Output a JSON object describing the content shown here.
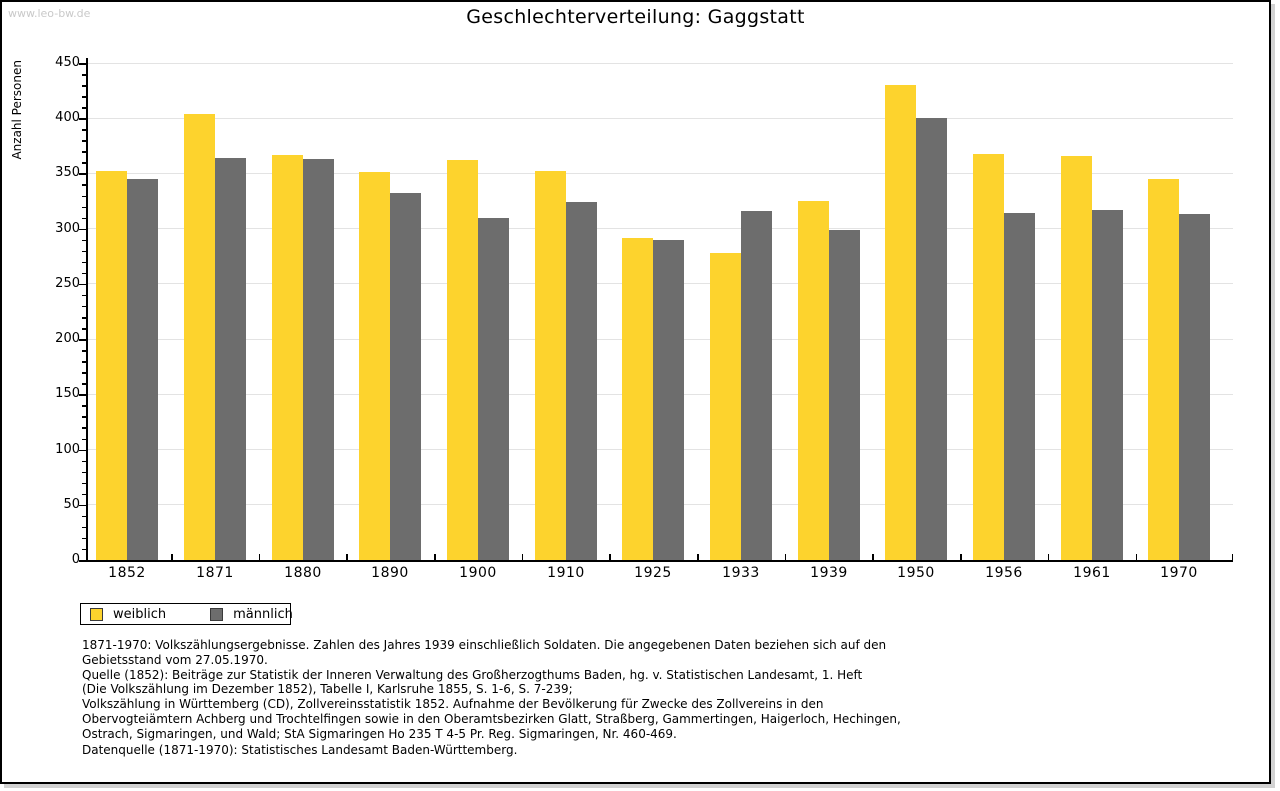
{
  "watermark": "www.leo-bw.de",
  "title": "Geschlechterverteilung: Gaggstatt",
  "chart_data": {
    "type": "bar",
    "title": "Geschlechterverteilung: Gaggstatt",
    "xlabel": "",
    "ylabel": "Anzahl Personen",
    "categories": [
      "1852",
      "1871",
      "1880",
      "1890",
      "1900",
      "1910",
      "1925",
      "1933",
      "1939",
      "1950",
      "1956",
      "1961",
      "1970"
    ],
    "series": [
      {
        "name": "weiblich",
        "color": "#fdd32d",
        "values": [
          352,
          404,
          367,
          351,
          362,
          352,
          292,
          278,
          325,
          430,
          368,
          366,
          345
        ]
      },
      {
        "name": "männlich",
        "color": "#6d6d6d",
        "values": [
          345,
          364,
          363,
          332,
          310,
          324,
          290,
          316,
          299,
          400,
          314,
          317,
          313
        ]
      }
    ],
    "ylim": [
      0,
      450
    ],
    "ytick_step": 50,
    "minor_tick_step": 10,
    "grid": "horizontal",
    "legend_position": "bottom-left"
  },
  "legend": {
    "items": [
      {
        "label": "weiblich",
        "color": "#fdd32d"
      },
      {
        "label": "männlich",
        "color": "#6d6d6d"
      }
    ]
  },
  "footnotes": {
    "lines": [
      "1871-1970: Volkszählungsergebnisse. Zahlen des Jahres 1939 einschließlich Soldaten. Die angegebenen Daten beziehen sich auf den",
      "Gebietsstand vom 27.05.1970.",
      "Quelle (1852): Beiträge zur Statistik der Inneren Verwaltung des Großherzogthums Baden, hg. v. Statistischen Landesamt, 1. Heft",
      "(Die Volkszählung im Dezember 1852), Tabelle I, Karlsruhe 1855, S. 1-6, S. 7-239;",
      "Volkszählung in Württemberg (CD), Zollvereinsstatistik 1852. Aufnahme der Bevölkerung für Zwecke des Zollvereins in den",
      "Obervogteiämtern Achberg und Trochtelfingen sowie in den Oberamtsbezirken Glatt, Straßberg, Gammertingen, Haigerloch, Hechingen,",
      "Ostrach, Sigmaringen, und Wald; StA Sigmaringen Ho 235 T 4-5 Pr. Reg. Sigmaringen, Nr. 460-469."
    ],
    "data_source": "Datenquelle (1871-1970): Statistisches Landesamt Baden-Württemberg."
  },
  "colors": {
    "weiblich": "#fdd32d",
    "männlich": "#6d6d6d",
    "gridline": "#e3e3e3",
    "axis": "#000000",
    "watermark": "#c9c9c9",
    "frame_border": "#000000"
  }
}
